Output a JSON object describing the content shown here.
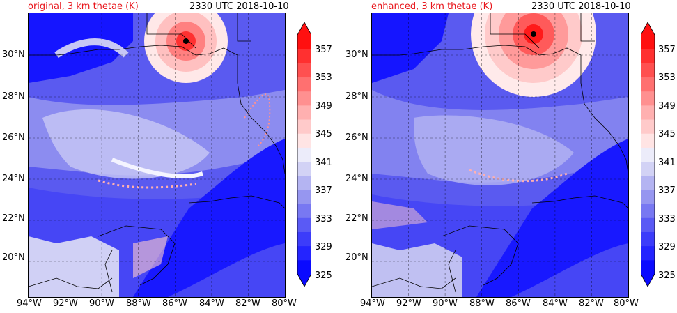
{
  "panels": [
    {
      "title_left": "original, 3 km thetae (K)",
      "title_right": "2330 UTC 2018-10-10"
    },
    {
      "title_left": "enhanced, 3 km thetae (K)",
      "title_right": "2330 UTC 2018-10-10"
    }
  ],
  "axes": {
    "lon_labels": [
      "94°W",
      "92°W",
      "90°W",
      "88°W",
      "86°W",
      "84°W",
      "82°W",
      "80°W"
    ],
    "lat_labels": [
      "30°N",
      "28°N",
      "26°N",
      "24°N",
      "22°N",
      "20°N"
    ],
    "lon_range": [
      -94,
      -80
    ],
    "lat_range": [
      18.2,
      32
    ]
  },
  "colorbar": {
    "labels": [
      "357",
      "353",
      "349",
      "345",
      "341",
      "337",
      "333",
      "329",
      "325"
    ],
    "range": [
      325,
      359
    ],
    "step": 2,
    "colors_low_to_high": [
      "#0a0aff",
      "#2424ff",
      "#3c3cfa",
      "#5a5af5",
      "#7878f2",
      "#9696f0",
      "#b4b4f2",
      "#d2d2f5",
      "#ececfa",
      "#ffe4e4",
      "#ffcaca",
      "#ffb0b0",
      "#ff9090",
      "#ff7070",
      "#ff5050",
      "#ff3030",
      "#ff1010"
    ]
  },
  "storm_marker": [
    {
      "lon": -85.4,
      "lat": 30.7
    },
    {
      "lon": -85.1,
      "lat": 31.0
    }
  ],
  "grid": "dashed"
}
